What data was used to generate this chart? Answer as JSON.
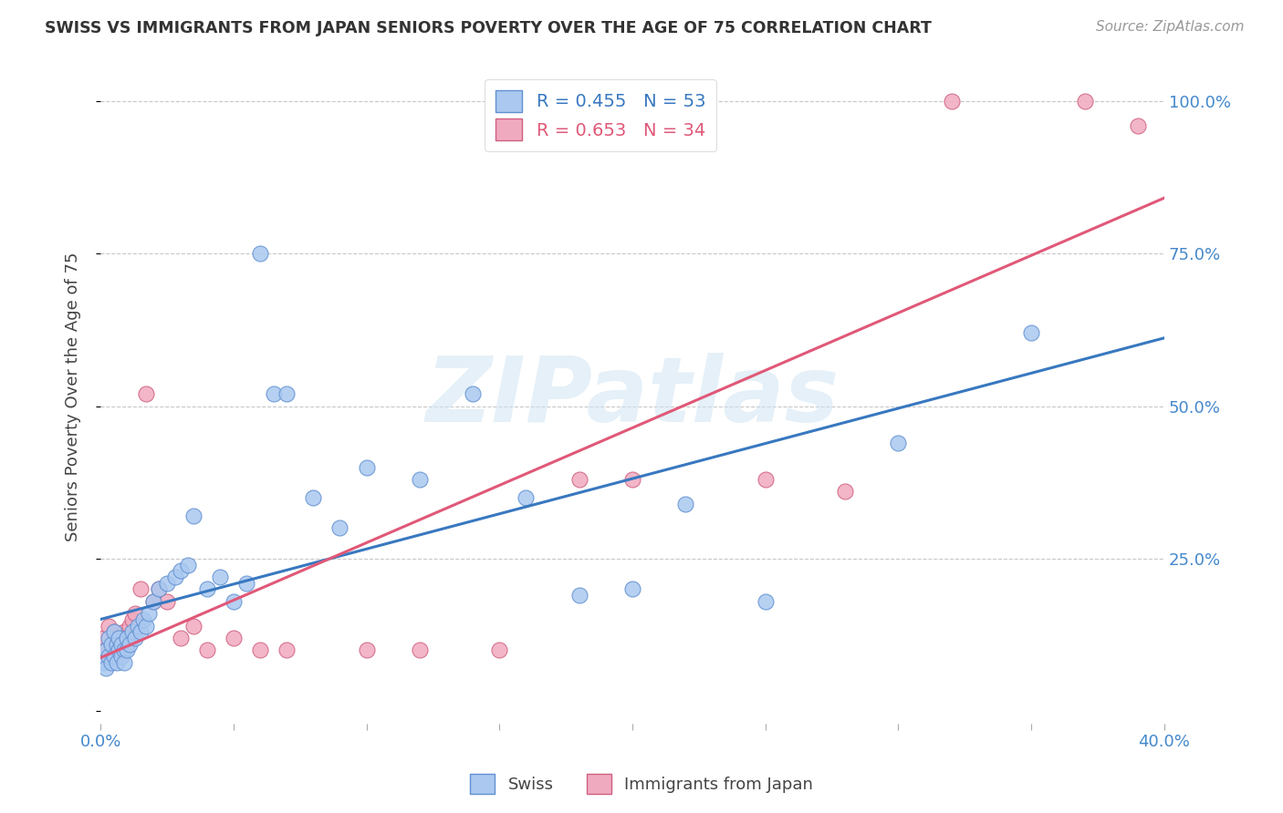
{
  "title": "SWISS VS IMMIGRANTS FROM JAPAN SENIORS POVERTY OVER THE AGE OF 75 CORRELATION CHART",
  "source": "Source: ZipAtlas.com",
  "ylabel": "Seniors Poverty Over the Age of 75",
  "xlim": [
    0.0,
    0.4
  ],
  "ylim": [
    -0.02,
    1.05
  ],
  "xticks": [
    0.0,
    0.05,
    0.1,
    0.15,
    0.2,
    0.25,
    0.3,
    0.35,
    0.4
  ],
  "yticks": [
    0.0,
    0.25,
    0.5,
    0.75,
    1.0
  ],
  "ytick_labels_right": [
    "",
    "25.0%",
    "50.0%",
    "75.0%",
    "100.0%"
  ],
  "grid_color": "#c8c8c8",
  "background_color": "#ffffff",
  "swiss_color": "#aac8f0",
  "japan_color": "#f0aabf",
  "swiss_edge_color": "#6090d0",
  "japan_edge_color": "#d06080",
  "line_swiss_color": "#3878c0",
  "line_japan_color": "#e05878",
  "legend_R_swiss": "R = 0.455",
  "legend_N_swiss": "N = 53",
  "legend_R_japan": "R = 0.653",
  "legend_N_japan": "N = 34",
  "watermark": "ZIPatlas",
  "swiss_x": [
    0.001,
    0.002,
    0.002,
    0.003,
    0.003,
    0.004,
    0.004,
    0.005,
    0.005,
    0.006,
    0.006,
    0.007,
    0.007,
    0.008,
    0.008,
    0.009,
    0.009,
    0.01,
    0.01,
    0.011,
    0.012,
    0.013,
    0.014,
    0.015,
    0.016,
    0.017,
    0.018,
    0.02,
    0.022,
    0.025,
    0.028,
    0.03,
    0.033,
    0.035,
    0.04,
    0.045,
    0.05,
    0.055,
    0.06,
    0.065,
    0.07,
    0.08,
    0.09,
    0.1,
    0.12,
    0.14,
    0.16,
    0.18,
    0.2,
    0.22,
    0.25,
    0.3,
    0.35
  ],
  "swiss_y": [
    0.08,
    0.07,
    0.1,
    0.09,
    0.12,
    0.08,
    0.11,
    0.09,
    0.13,
    0.08,
    0.11,
    0.1,
    0.12,
    0.09,
    0.11,
    0.1,
    0.08,
    0.1,
    0.12,
    0.11,
    0.13,
    0.12,
    0.14,
    0.13,
    0.15,
    0.14,
    0.16,
    0.18,
    0.2,
    0.21,
    0.22,
    0.23,
    0.24,
    0.32,
    0.2,
    0.22,
    0.18,
    0.21,
    0.75,
    0.52,
    0.52,
    0.35,
    0.3,
    0.4,
    0.38,
    0.52,
    0.35,
    0.19,
    0.2,
    0.34,
    0.18,
    0.44,
    0.62
  ],
  "japan_x": [
    0.001,
    0.002,
    0.003,
    0.004,
    0.005,
    0.006,
    0.007,
    0.008,
    0.009,
    0.01,
    0.011,
    0.012,
    0.013,
    0.015,
    0.017,
    0.02,
    0.022,
    0.025,
    0.03,
    0.035,
    0.04,
    0.05,
    0.06,
    0.07,
    0.1,
    0.12,
    0.15,
    0.18,
    0.2,
    0.25,
    0.28,
    0.32,
    0.37,
    0.39
  ],
  "japan_y": [
    0.12,
    0.1,
    0.14,
    0.09,
    0.13,
    0.11,
    0.1,
    0.12,
    0.13,
    0.11,
    0.14,
    0.15,
    0.16,
    0.2,
    0.52,
    0.18,
    0.2,
    0.18,
    0.12,
    0.14,
    0.1,
    0.12,
    0.1,
    0.1,
    0.1,
    0.1,
    0.1,
    0.38,
    0.38,
    0.38,
    0.36,
    1.0,
    1.0,
    0.96
  ]
}
